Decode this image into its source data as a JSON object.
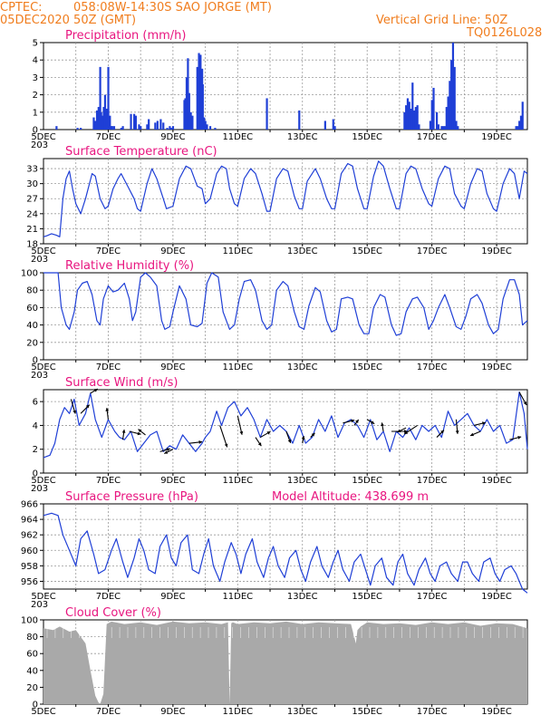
{
  "header": {
    "source": "CPTEC:",
    "location": "058:08W-14:30S  SAO JORGE (MT)",
    "date": "05DEC2020 50Z (GMT)",
    "grid_note": "Vertical Grid Line: 50Z",
    "code": "TQ0126L028"
  },
  "colors": {
    "header": "#f07d1e",
    "title": "#e8157f",
    "line": "#1f3fd6",
    "bar": "#1f3fd6",
    "cloud": "#a9a9a9"
  },
  "x_axis": {
    "labels": [
      "5DEC",
      "7DEC",
      "9DEC",
      "11DEC",
      "13DEC",
      "15DEC",
      "17DEC",
      "19DEC"
    ],
    "label_days": [
      5,
      7,
      9,
      11,
      13,
      15,
      17,
      19
    ],
    "grid_days": [
      6,
      7,
      8,
      9,
      10,
      11,
      12,
      13,
      14,
      15,
      16,
      17,
      18,
      19
    ],
    "start_day": 5,
    "end_day": 19.95,
    "stub_text": "203"
  },
  "chart_data": [
    {
      "type": "bar",
      "title": "Precipitation (mm/h)",
      "ylim": [
        0,
        5
      ],
      "yticks": [
        0,
        1,
        2,
        3,
        4,
        5
      ],
      "grid": true,
      "x": [
        5.4,
        6.05,
        6.15,
        6.55,
        6.6,
        6.65,
        6.7,
        6.75,
        6.78,
        6.82,
        6.86,
        6.9,
        6.95,
        7.0,
        7.05,
        7.1,
        7.12,
        7.18,
        7.4,
        7.45,
        7.7,
        7.8,
        7.85,
        7.95,
        8.0,
        8.2,
        8.25,
        8.45,
        8.52,
        8.62,
        8.7,
        8.82,
        8.9,
        8.95,
        9.0,
        9.35,
        9.38,
        9.42,
        9.46,
        9.5,
        9.55,
        9.6,
        9.75,
        9.8,
        9.85,
        9.9,
        9.92,
        9.96,
        10.0,
        10.05,
        10.15,
        10.3,
        11.9,
        12.9,
        13.7,
        13.95,
        14.0,
        16.15,
        16.2,
        16.25,
        16.3,
        16.35,
        16.4,
        16.45,
        16.5,
        16.55,
        16.6,
        16.95,
        17.0,
        17.05,
        17.15,
        17.2,
        17.3,
        17.35,
        17.4,
        17.45,
        17.5,
        17.55,
        17.6,
        17.65,
        17.7,
        17.75,
        17.8,
        19.6,
        19.65,
        19.7,
        19.75,
        19.8
      ],
      "values": [
        0.2,
        0.1,
        0.1,
        0.7,
        0.5,
        1.1,
        1.3,
        3.6,
        1.0,
        0.8,
        1.3,
        2.0,
        1.2,
        3.6,
        0.8,
        0.2,
        0.2,
        0.2,
        0.1,
        0.2,
        0.9,
        0.9,
        0.8,
        0.3,
        0.2,
        0.3,
        0.6,
        0.4,
        0.5,
        0.6,
        0.4,
        0.1,
        0.2,
        0.1,
        0.2,
        1.7,
        1.8,
        3.0,
        4.1,
        2.1,
        1.0,
        0.8,
        3.6,
        4.4,
        4.3,
        3.5,
        2.6,
        0.7,
        0.5,
        0.3,
        0.2,
        0.1,
        1.8,
        1.1,
        0.5,
        0.6,
        0.2,
        1.0,
        1.4,
        1.8,
        1.6,
        1.2,
        2.7,
        1.1,
        1.3,
        1.4,
        0.3,
        0.5,
        1.7,
        2.4,
        1.0,
        0.3,
        0.2,
        0.2,
        0.2,
        1.3,
        1.9,
        2.8,
        4.0,
        5.0,
        3.6,
        0.5,
        0.2,
        0.2,
        0.2,
        0.5,
        0.8,
        1.6
      ]
    },
    {
      "type": "line",
      "title": "Surface Temperature (nC)",
      "ylim": [
        18,
        35
      ],
      "yticks": [
        18,
        21,
        24,
        27,
        30,
        33
      ],
      "grid": true,
      "x": [
        5.0,
        5.1,
        5.25,
        5.4,
        5.5,
        5.6,
        5.7,
        5.8,
        5.9,
        6.0,
        6.15,
        6.3,
        6.5,
        6.6,
        6.75,
        6.9,
        7.0,
        7.15,
        7.3,
        7.4,
        7.6,
        7.8,
        7.9,
        8.0,
        8.2,
        8.35,
        8.5,
        8.7,
        8.8,
        9.0,
        9.2,
        9.4,
        9.55,
        9.75,
        9.9,
        10.0,
        10.15,
        10.35,
        10.5,
        10.65,
        10.75,
        10.9,
        11.0,
        11.2,
        11.4,
        11.55,
        11.75,
        11.9,
        12.0,
        12.2,
        12.4,
        12.55,
        12.75,
        12.9,
        13.0,
        13.15,
        13.4,
        13.55,
        13.75,
        13.9,
        14.0,
        14.2,
        14.4,
        14.55,
        14.7,
        14.9,
        15.0,
        15.2,
        15.35,
        15.5,
        15.7,
        15.9,
        16.0,
        16.2,
        16.35,
        16.5,
        16.7,
        16.9,
        17.0,
        17.2,
        17.4,
        17.55,
        17.7,
        17.9,
        18.0,
        18.2,
        18.4,
        18.55,
        18.7,
        18.9,
        19.0,
        19.2,
        19.4,
        19.55,
        19.7,
        19.85,
        19.95
      ],
      "values": [
        19.4,
        19.6,
        20.0,
        19.7,
        19.4,
        27.0,
        31.0,
        32.5,
        29.0,
        26.0,
        24.0,
        27.0,
        32.0,
        31.5,
        27.0,
        25.0,
        25.5,
        29.0,
        31.0,
        32.0,
        29.5,
        27.0,
        25.0,
        24.5,
        30.0,
        33.0,
        31.0,
        27.0,
        25.0,
        25.5,
        31.0,
        33.5,
        33.0,
        29.5,
        29.0,
        26.0,
        27.0,
        32.0,
        33.5,
        33.0,
        29.0,
        26.0,
        25.5,
        31.0,
        33.0,
        32.0,
        28.0,
        24.5,
        24.5,
        31.0,
        33.0,
        32.5,
        27.5,
        25.0,
        25.0,
        30.5,
        33.0,
        31.0,
        27.0,
        25.0,
        25.0,
        32.0,
        34.0,
        33.5,
        29.0,
        25.0,
        25.0,
        31.5,
        34.5,
        33.5,
        29.0,
        25.0,
        25.0,
        32.0,
        33.5,
        33.0,
        29.0,
        26.0,
        25.5,
        31.0,
        33.5,
        33.0,
        28.0,
        25.5,
        25.0,
        30.0,
        33.0,
        32.5,
        28.0,
        25.0,
        24.5,
        30.0,
        33.0,
        32.0,
        27.0,
        32.5,
        32.0
      ]
    },
    {
      "type": "line",
      "title": "Relative Humidity (%)",
      "ylim": [
        0,
        100
      ],
      "yticks": [
        0,
        20,
        40,
        60,
        80,
        100
      ],
      "grid": true,
      "x": [
        5.0,
        5.15,
        5.3,
        5.45,
        5.55,
        5.7,
        5.8,
        5.95,
        6.05,
        6.2,
        6.35,
        6.5,
        6.65,
        6.75,
        6.85,
        7.0,
        7.15,
        7.3,
        7.5,
        7.65,
        7.75,
        7.85,
        8.0,
        8.15,
        8.3,
        8.5,
        8.65,
        8.75,
        8.9,
        9.0,
        9.2,
        9.4,
        9.55,
        9.75,
        9.9,
        10.05,
        10.2,
        10.4,
        10.55,
        10.75,
        10.9,
        11.05,
        11.2,
        11.4,
        11.55,
        11.75,
        11.9,
        12.05,
        12.2,
        12.4,
        12.55,
        12.75,
        12.9,
        13.05,
        13.2,
        13.4,
        13.55,
        13.75,
        13.9,
        14.05,
        14.2,
        14.4,
        14.55,
        14.75,
        14.9,
        15.05,
        15.2,
        15.4,
        15.55,
        15.75,
        15.9,
        16.05,
        16.2,
        16.4,
        16.55,
        16.75,
        16.9,
        17.05,
        17.2,
        17.4,
        17.55,
        17.75,
        17.9,
        18.05,
        18.2,
        18.4,
        18.55,
        18.75,
        18.9,
        19.05,
        19.2,
        19.4,
        19.55,
        19.7,
        19.8,
        19.95
      ],
      "values": [
        100,
        100,
        100,
        100,
        60,
        40,
        35,
        55,
        80,
        88,
        90,
        75,
        45,
        40,
        70,
        85,
        78,
        80,
        88,
        70,
        45,
        55,
        95,
        100,
        95,
        85,
        45,
        35,
        38,
        55,
        85,
        70,
        40,
        38,
        42,
        88,
        100,
        95,
        55,
        35,
        40,
        70,
        90,
        92,
        80,
        45,
        35,
        40,
        80,
        90,
        85,
        55,
        38,
        35,
        62,
        83,
        78,
        45,
        32,
        35,
        70,
        72,
        70,
        40,
        30,
        30,
        60,
        75,
        72,
        40,
        28,
        30,
        55,
        70,
        72,
        60,
        35,
        45,
        60,
        75,
        60,
        38,
        35,
        50,
        70,
        75,
        65,
        40,
        30,
        35,
        70,
        92,
        92,
        75,
        40,
        45
      ]
    },
    {
      "type": "line",
      "title": "Surface Wind (m/s)",
      "ylim": [
        0,
        7
      ],
      "yticks": [
        0,
        2,
        4,
        6
      ],
      "grid": true,
      "x": [
        5.0,
        5.2,
        5.35,
        5.5,
        5.65,
        5.8,
        5.95,
        6.1,
        6.3,
        6.45,
        6.6,
        6.8,
        7.0,
        7.2,
        7.35,
        7.5,
        7.7,
        7.9,
        8.1,
        8.3,
        8.5,
        8.7,
        8.9,
        9.1,
        9.3,
        9.5,
        9.7,
        9.9,
        10.0,
        10.15,
        10.35,
        10.5,
        10.7,
        10.9,
        11.1,
        11.3,
        11.5,
        11.7,
        11.9,
        12.1,
        12.3,
        12.5,
        12.7,
        12.9,
        13.1,
        13.3,
        13.5,
        13.7,
        13.9,
        14.1,
        14.3,
        14.5,
        14.7,
        14.9,
        15.1,
        15.3,
        15.5,
        15.7,
        15.9,
        16.1,
        16.3,
        16.5,
        16.7,
        16.9,
        17.1,
        17.3,
        17.5,
        17.7,
        17.9,
        18.1,
        18.3,
        18.5,
        18.7,
        18.9,
        19.1,
        19.3,
        19.5,
        19.7,
        19.85,
        19.95
      ],
      "values": [
        1.3,
        1.5,
        2.5,
        4.5,
        5.5,
        5.0,
        6.2,
        4.0,
        5.0,
        6.7,
        4.5,
        3.0,
        4.5,
        3.5,
        3.0,
        2.8,
        3.5,
        1.8,
        2.5,
        3.2,
        3.5,
        1.8,
        2.3,
        2.0,
        3.2,
        2.5,
        1.8,
        2.5,
        3.0,
        3.5,
        5.2,
        4.0,
        5.5,
        6.0,
        4.8,
        5.5,
        4.5,
        3.0,
        4.5,
        3.5,
        4.0,
        3.5,
        2.5,
        4.0,
        2.5,
        3.0,
        4.5,
        3.5,
        4.8,
        3.0,
        4.2,
        4.5,
        4.0,
        3.0,
        4.5,
        2.8,
        3.5,
        1.8,
        3.5,
        3.0,
        3.8,
        2.8,
        4.0,
        3.5,
        4.0,
        3.0,
        5.2,
        4.0,
        4.5,
        5.0,
        4.0,
        3.5,
        4.5,
        3.5,
        4.0,
        2.5,
        2.8,
        6.8,
        5.0,
        2.0
      ],
      "vectors": [
        {
          "x": 5.85,
          "u": 0.3,
          "v": -1.0
        },
        {
          "x": 6.15,
          "u": 0.6,
          "v": 0.6
        },
        {
          "x": 6.45,
          "u": 0.5,
          "v": 0.3
        },
        {
          "x": 7.0,
          "u": -0.1,
          "v": 0.8
        },
        {
          "x": 7.45,
          "u": 0.1,
          "v": 0.7
        },
        {
          "x": 7.65,
          "u": 0.8,
          "v": -0.2
        },
        {
          "x": 8.15,
          "u": -0.5,
          "v": 0.4
        },
        {
          "x": 8.6,
          "u": 0.7,
          "v": 0.2
        },
        {
          "x": 9.0,
          "u": -0.6,
          "v": -0.3
        },
        {
          "x": 9.5,
          "u": 0.9,
          "v": 0.1
        },
        {
          "x": 10.45,
          "u": 0.5,
          "v": -1.5
        },
        {
          "x": 11.0,
          "u": 0.3,
          "v": -1.3
        },
        {
          "x": 11.55,
          "u": 0.4,
          "v": -0.6
        },
        {
          "x": 11.7,
          "u": 0.7,
          "v": 0.4
        },
        {
          "x": 12.5,
          "u": 0.3,
          "v": -0.8
        },
        {
          "x": 13.0,
          "u": 0.1,
          "v": 0.5
        },
        {
          "x": 13.25,
          "u": 0.3,
          "v": 0.3
        },
        {
          "x": 14.25,
          "u": 0.8,
          "v": 0.2
        },
        {
          "x": 14.6,
          "u": 0.3,
          "v": 0.4
        },
        {
          "x": 15.0,
          "u": 0.5,
          "v": -0.3
        },
        {
          "x": 15.5,
          "u": -0.1,
          "v": 0.6
        },
        {
          "x": 15.75,
          "u": 1.1,
          "v": 0.0
        },
        {
          "x": 16.2,
          "u": -0.6,
          "v": -0.3
        },
        {
          "x": 16.55,
          "u": -0.9,
          "v": -0.6
        },
        {
          "x": 17.15,
          "u": 0.5,
          "v": 0.5
        },
        {
          "x": 17.75,
          "u": 0.1,
          "v": -1.0
        },
        {
          "x": 18.3,
          "u": 0.8,
          "v": 0.2
        },
        {
          "x": 18.5,
          "u": -0.7,
          "v": -0.3
        },
        {
          "x": 19.4,
          "u": 0.8,
          "v": 0.2
        },
        {
          "x": 19.7,
          "u": 0.5,
          "v": -0.9
        }
      ]
    },
    {
      "type": "line",
      "title": "Surface Pressure (hPa)",
      "annotation": "Model Altitude: 438.699 m",
      "ylim": [
        955,
        966
      ],
      "yticks": [
        956,
        958,
        960,
        962,
        964,
        966
      ],
      "grid": true,
      "x": [
        5.0,
        5.25,
        5.45,
        5.6,
        5.8,
        6.0,
        6.15,
        6.35,
        6.55,
        6.7,
        6.9,
        7.1,
        7.25,
        7.45,
        7.6,
        7.8,
        7.95,
        8.1,
        8.25,
        8.45,
        8.6,
        8.8,
        8.95,
        9.1,
        9.25,
        9.45,
        9.6,
        9.8,
        9.95,
        10.1,
        10.25,
        10.45,
        10.6,
        10.8,
        10.95,
        11.1,
        11.25,
        11.45,
        11.6,
        11.8,
        11.95,
        12.1,
        12.25,
        12.45,
        12.6,
        12.8,
        12.95,
        13.1,
        13.25,
        13.45,
        13.6,
        13.8,
        13.95,
        14.1,
        14.25,
        14.45,
        14.6,
        14.8,
        14.95,
        15.1,
        15.25,
        15.45,
        15.6,
        15.8,
        15.95,
        16.1,
        16.25,
        16.45,
        16.6,
        16.8,
        16.95,
        17.1,
        17.25,
        17.45,
        17.6,
        17.8,
        17.95,
        18.1,
        18.25,
        18.45,
        18.6,
        18.8,
        18.95,
        19.1,
        19.25,
        19.45,
        19.6,
        19.8,
        19.95
      ],
      "values": [
        964.5,
        964.8,
        964.5,
        962.0,
        960.0,
        958.0,
        961.5,
        962.5,
        959.5,
        957.0,
        957.5,
        960.0,
        961.5,
        958.5,
        956.5,
        959.0,
        961.5,
        960.0,
        957.5,
        957.0,
        960.5,
        962.0,
        959.0,
        958.0,
        961.0,
        962.0,
        957.5,
        957.0,
        959.5,
        961.5,
        958.0,
        956.0,
        958.5,
        961.0,
        959.5,
        957.0,
        959.5,
        961.5,
        958.5,
        956.5,
        959.0,
        960.5,
        958.0,
        956.5,
        959.0,
        960.0,
        957.5,
        956.0,
        958.5,
        960.5,
        958.0,
        956.5,
        958.5,
        960.0,
        957.5,
        956.0,
        958.5,
        959.5,
        957.5,
        955.5,
        958.0,
        959.0,
        956.5,
        955.5,
        958.5,
        959.5,
        957.0,
        955.5,
        957.5,
        959.0,
        957.0,
        956.0,
        958.0,
        958.5,
        957.0,
        956.0,
        958.5,
        958.5,
        957.0,
        956.0,
        958.5,
        959.0,
        957.0,
        956.0,
        957.5,
        958.0,
        957.0,
        955.0,
        954.5
      ]
    },
    {
      "type": "area",
      "title": "Cloud Cover (%)",
      "ylim": [
        0,
        100
      ],
      "yticks": [
        0,
        20,
        40,
        60,
        80,
        100
      ],
      "grid": true,
      "x": [
        5.0,
        5.3,
        5.5,
        5.8,
        6.0,
        6.3,
        6.45,
        6.6,
        6.7,
        6.75,
        6.85,
        6.95,
        7.1,
        7.5,
        8.0,
        8.5,
        9.0,
        9.5,
        10.0,
        10.5,
        10.7,
        10.75,
        10.8,
        10.85,
        11.0,
        11.5,
        12.0,
        12.5,
        13.0,
        13.5,
        14.0,
        14.5,
        14.6,
        14.65,
        14.7,
        14.8,
        15.0,
        15.5,
        16.0,
        16.5,
        17.0,
        17.5,
        18.0,
        18.5,
        19.0,
        19.5,
        19.95
      ],
      "values": [
        90,
        88,
        92,
        86,
        88,
        72,
        40,
        10,
        2,
        0,
        12,
        95,
        98,
        95,
        97,
        94,
        98,
        96,
        97,
        95,
        97,
        0,
        96,
        97,
        95,
        97,
        96,
        98,
        95,
        97,
        96,
        95,
        80,
        72,
        88,
        92,
        97,
        95,
        96,
        94,
        97,
        95,
        97,
        93,
        96,
        95,
        90
      ]
    }
  ]
}
